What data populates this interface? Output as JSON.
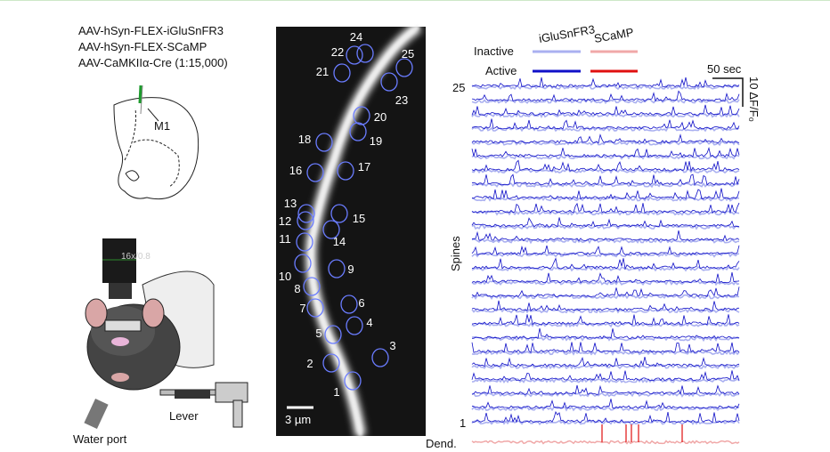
{
  "panel_a": {
    "virus_lines": [
      "AAV-hSyn-FLEX-iGluSnFR3",
      "AAV-hSyn-FLEX-SCaMP",
      "AAV-CaMKIIα-Cre (1:15,000)"
    ],
    "region_label": "M1",
    "objective_label": "16x/0.8",
    "lever_label": "Lever",
    "water_port_label": "Water port"
  },
  "panel_b": {
    "spine_labels": [
      "1",
      "2",
      "3",
      "4",
      "5",
      "6",
      "7",
      "8",
      "9",
      "10",
      "11",
      "12",
      "13",
      "14",
      "15",
      "16",
      "17",
      "18",
      "19",
      "20",
      "21",
      "22",
      "23",
      "24",
      "25"
    ],
    "scale_bar_label": "3 µm"
  },
  "panel_c": {
    "legend": {
      "inactive_label": "Inactive",
      "active_label": "Active",
      "sensor_1": "iGluSnFR3",
      "sensor_2": "SCaMP"
    },
    "time_scale_label": "50 sec",
    "amplitude_scale_label": "10 ΔF/F₀",
    "y_axis_label": "Spines",
    "top_row_label": "25",
    "bottom_row_label": "1",
    "dendrite_label": "Dend."
  }
}
